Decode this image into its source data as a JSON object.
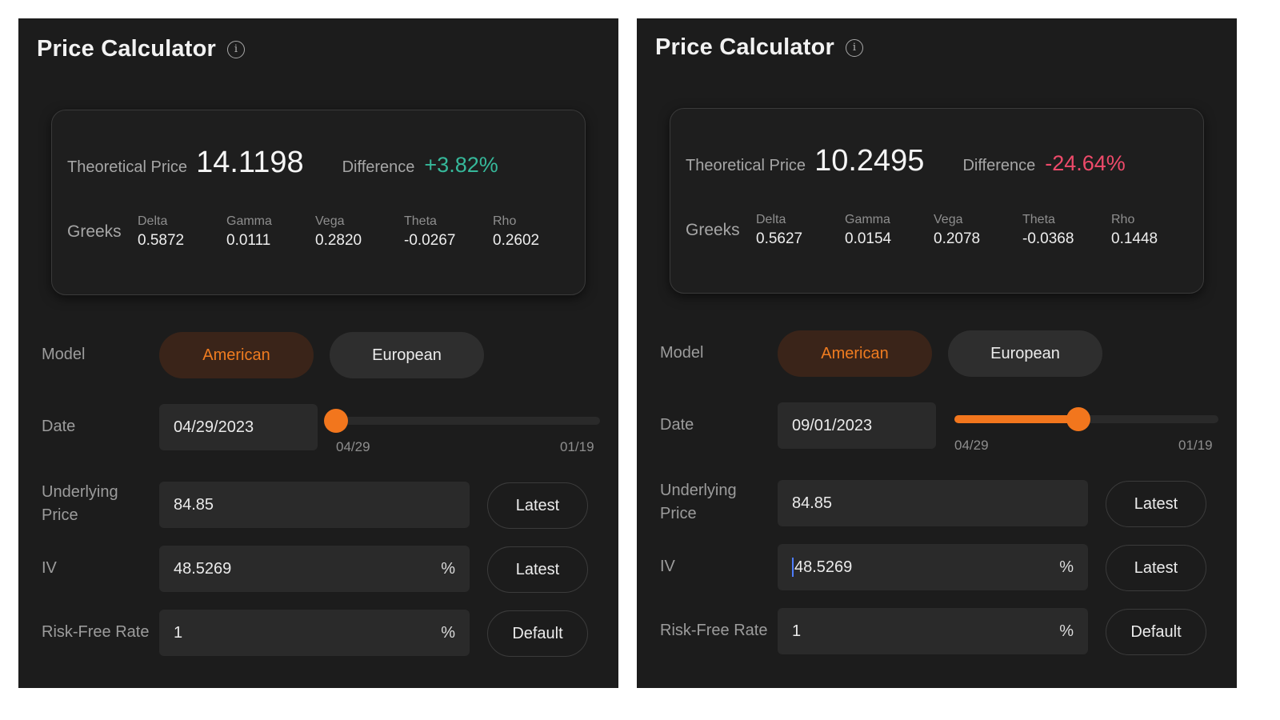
{
  "panels": [
    {
      "title": "Price Calculator",
      "theoretical_price_label": "Theoretical Price",
      "theoretical_price": "14.1198",
      "difference_label": "Difference",
      "difference": "+3.82%",
      "greeks_label": "Greeks",
      "greeks": [
        {
          "name": "Delta",
          "value": "0.5872"
        },
        {
          "name": "Gamma",
          "value": "0.0111"
        },
        {
          "name": "Vega",
          "value": "0.2820"
        },
        {
          "name": "Theta",
          "value": "-0.0267"
        },
        {
          "name": "Rho",
          "value": "0.2602"
        }
      ],
      "model_label": "Model",
      "model_options": [
        "American",
        "European"
      ],
      "model_selected": "American",
      "date_label": "Date",
      "date_value": "04/29/2023",
      "slider_min_label": "04/29",
      "slider_max_label": "01/19",
      "slider_position": 0.0,
      "underlying_label_line1": "Underlying",
      "underlying_label_line2": "Price",
      "underlying_value": "84.85",
      "underlying_button": "Latest",
      "iv_label": "IV",
      "iv_value": "48.5269",
      "iv_unit": "%",
      "iv_button": "Latest",
      "iv_caret": false,
      "rate_label": "Risk-Free Rate",
      "rate_value": "1",
      "rate_unit": "%",
      "rate_button": "Default"
    },
    {
      "title": "Price Calculator",
      "theoretical_price_label": "Theoretical Price",
      "theoretical_price": "10.2495",
      "difference_label": "Difference",
      "difference": "-24.64%",
      "greeks_label": "Greeks",
      "greeks": [
        {
          "name": "Delta",
          "value": "0.5627"
        },
        {
          "name": "Gamma",
          "value": "0.0154"
        },
        {
          "name": "Vega",
          "value": "0.2078"
        },
        {
          "name": "Theta",
          "value": "-0.0368"
        },
        {
          "name": "Rho",
          "value": "0.1448"
        }
      ],
      "model_label": "Model",
      "model_options": [
        "American",
        "European"
      ],
      "model_selected": "American",
      "date_label": "Date",
      "date_value": "09/01/2023",
      "slider_min_label": "04/29",
      "slider_max_label": "01/19",
      "slider_position": 0.47,
      "underlying_label_line1": "Underlying",
      "underlying_label_line2": "Price",
      "underlying_value": "84.85",
      "underlying_button": "Latest",
      "iv_label": "IV",
      "iv_value": "48.5269",
      "iv_unit": "%",
      "iv_button": "Latest",
      "iv_caret": true,
      "rate_label": "Risk-Free Rate",
      "rate_value": "1",
      "rate_unit": "%",
      "rate_button": "Default"
    }
  ],
  "colors": {
    "accent": "#f2761d",
    "positive": "#36b89a",
    "negative": "#ee4a6a",
    "panel_bg": "#1c1c1c"
  },
  "icons": {
    "title_info": "info-icon"
  }
}
